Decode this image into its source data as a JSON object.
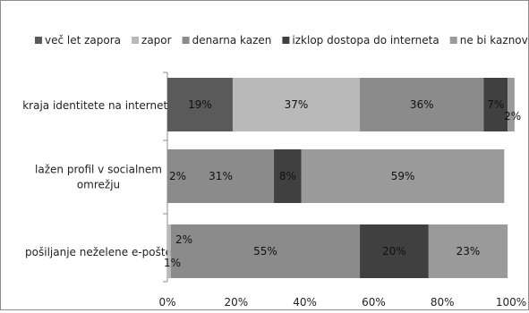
{
  "chart_data": {
    "type": "bar",
    "orientation": "horizontal",
    "stacked": "percent",
    "categories": [
      "kraja identitete na internetu",
      "lažen profil v socialnem omrežju",
      "pošiljanje neželene e-pošte"
    ],
    "category_lines": [
      [
        "kraja identitete na internetu"
      ],
      [
        "lažen profil v socialnem",
        "omrežju"
      ],
      [
        "pošiljanje neželene e-pošte"
      ]
    ],
    "series": [
      {
        "name": "več let zapora",
        "values": [
          19,
          0,
          0
        ],
        "labels": [
          "19%",
          "",
          ""
        ],
        "color": "#5a5a5a"
      },
      {
        "name": "zapor",
        "values": [
          37,
          0,
          1
        ],
        "labels": [
          "37%",
          "",
          "1%"
        ],
        "color": "#b9b9b9"
      },
      {
        "name": "denarna kazen",
        "values": [
          36,
          31,
          55
        ],
        "labels": [
          "36%",
          "31%",
          "55%"
        ],
        "color": "#8b8b8b"
      },
      {
        "name": "izklop dostopa do interneta",
        "values": [
          7,
          8,
          20
        ],
        "labels": [
          "7%",
          "8%",
          "20%"
        ],
        "color": "#404040"
      },
      {
        "name": "ne bi kaznoval/a",
        "values": [
          2,
          59,
          23
        ],
        "labels": [
          "2%",
          "59%",
          "23%"
        ],
        "color": "#9a9a9a"
      }
    ],
    "extra_labels": [
      {
        "category_index": 1,
        "text": "2%"
      },
      {
        "category_index": 2,
        "text": "2%"
      }
    ],
    "xlim": [
      0,
      100
    ],
    "xticks": [
      "0%",
      "20%",
      "40%",
      "60%",
      "80%",
      "100%"
    ],
    "legend_position": "top",
    "grid": false
  }
}
